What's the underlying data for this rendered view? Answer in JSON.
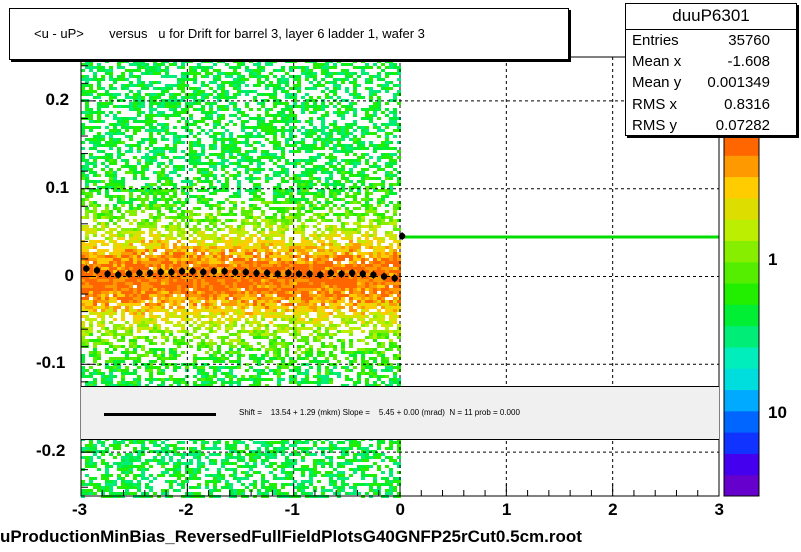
{
  "title": "<u - uP>       versus   u for Drift for barrel 3, layer 6 ladder 1, wafer 3",
  "stats": {
    "name": "duuP6301",
    "rows": [
      {
        "label": "Entries",
        "value": "35760"
      },
      {
        "label": "Mean x",
        "value": "-1.608"
      },
      {
        "label": "Mean y",
        "value": "0.001349"
      },
      {
        "label": "RMS x",
        "value": "0.8316"
      },
      {
        "label": "RMS y",
        "value": "0.07282"
      }
    ]
  },
  "fit_text": "Shift =    13.54 + 1.29 (mkm) Slope =    5.45 + 0.00 (mrad)  N = 11 prob = 0.000",
  "footer": "uProductionMinBias_ReversedFullFieldPlotsG40GNFP25rCut0.5cm.root",
  "colors": {
    "fit_line": "#00dd00",
    "profile": "#000000",
    "palette": [
      "#6600cc",
      "#4400ee",
      "#1133ff",
      "#0066ff",
      "#00aaff",
      "#00dddd",
      "#00eebb",
      "#00ee77",
      "#00ee33",
      "#22ee00",
      "#55ee00",
      "#88ee00",
      "#bbee00",
      "#dddd00",
      "#ffcc00",
      "#ff9900",
      "#ff6600"
    ]
  },
  "chart_data": {
    "type": "heatmap",
    "title": "<u - uP>       versus   u for Drift for barrel 3, layer 6 ladder 1, wafer 3",
    "xlim": [
      -3,
      3
    ],
    "ylim": [
      -0.25,
      0.25
    ],
    "x_ticks": [
      -3,
      -2,
      -1,
      0,
      1,
      2,
      3
    ],
    "y_ticks": [
      -0.2,
      -0.1,
      0,
      0.1,
      0.2
    ],
    "x_tick_labels": [
      "-3",
      "-2",
      "-1",
      "0",
      "1",
      "2",
      "3"
    ],
    "y_tick_labels": [
      "-0.2",
      "-0.1",
      "0",
      "0.1",
      "0.2"
    ],
    "grid": true,
    "colorbar": {
      "scale": "log",
      "tick_labels": [
        "10",
        "1",
        "10"
      ]
    },
    "profile": {
      "x": [
        -2.95,
        -2.85,
        -2.75,
        -2.65,
        -2.55,
        -2.45,
        -2.35,
        -2.25,
        -2.15,
        -2.05,
        -1.95,
        -1.85,
        -1.75,
        -1.65,
        -1.55,
        -1.45,
        -1.35,
        -1.25,
        -1.15,
        -1.05,
        -0.95,
        -0.85,
        -0.75,
        -0.65,
        -0.55,
        -0.45,
        -0.35,
        -0.25,
        -0.15,
        -0.05,
        0.02
      ],
      "y": [
        0.009,
        0.007,
        0.003,
        0.002,
        0.003,
        0.004,
        0.004,
        0.005,
        0.005,
        0.006,
        0.006,
        0.005,
        0.006,
        0.006,
        0.005,
        0.005,
        0.004,
        0.004,
        0.003,
        0.004,
        0.003,
        0.003,
        0.002,
        0.004,
        0.003,
        0.004,
        0.003,
        0.002,
        0.0,
        -0.002,
        0.046
      ]
    },
    "fit_line": {
      "x": [
        0.0,
        3.0
      ],
      "y": [
        0.045,
        0.045
      ]
    }
  }
}
